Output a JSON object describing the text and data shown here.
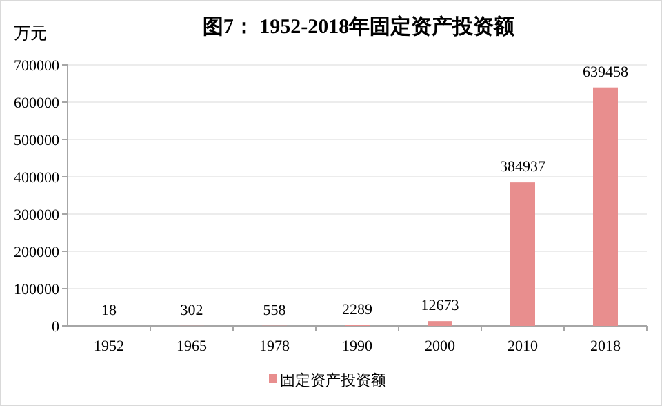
{
  "chart_data": {
    "type": "bar",
    "title": "图7：  1952-2018年固定资产投资额",
    "ylabel": "万元",
    "categories": [
      "1952",
      "1965",
      "1978",
      "1990",
      "2000",
      "2010",
      "2018"
    ],
    "series": [
      {
        "name": "固定资产投资额",
        "color": "#e88e8e",
        "values": [
          18,
          302,
          558,
          2289,
          12673,
          384937,
          639458
        ]
      }
    ],
    "ylim": [
      0,
      700000
    ],
    "yticks": [
      0,
      100000,
      200000,
      300000,
      400000,
      500000,
      600000,
      700000
    ],
    "grid": "y",
    "legend": "bottom",
    "data_labels": true
  }
}
